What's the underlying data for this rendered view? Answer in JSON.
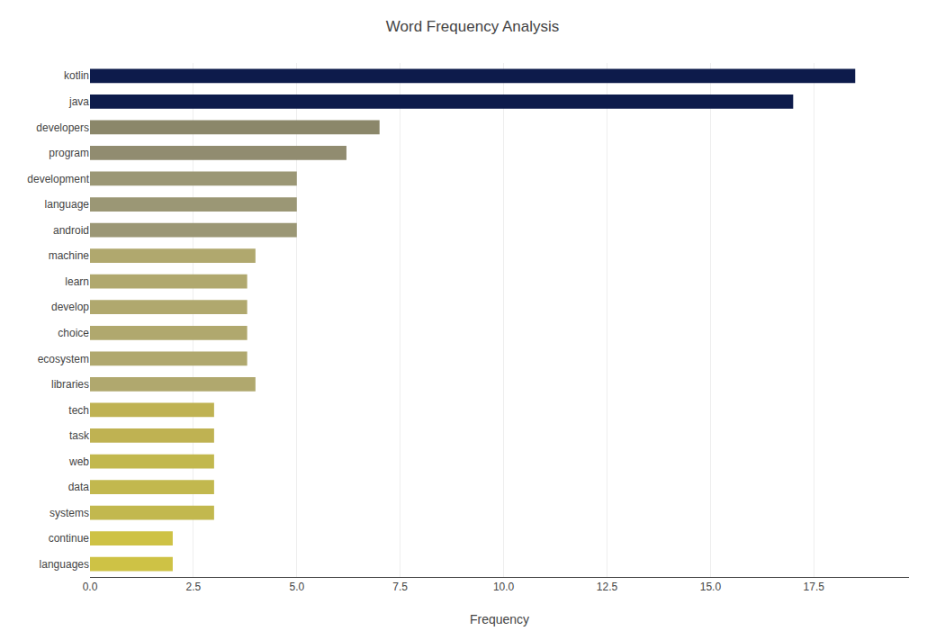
{
  "chart_data": {
    "type": "bar",
    "orientation": "horizontal",
    "title": "Word Frequency Analysis",
    "xlabel": "Frequency",
    "categories": [
      "kotlin",
      "java",
      "developers",
      "program",
      "development",
      "language",
      "android",
      "machine",
      "learn",
      "develop",
      "choice",
      "ecosystem",
      "libraries",
      "tech",
      "task",
      "web",
      "data",
      "systems",
      "continue",
      "languages"
    ],
    "values": [
      18.5,
      17.0,
      7.0,
      6.2,
      5.0,
      5.0,
      5.0,
      4.0,
      3.8,
      3.8,
      3.8,
      3.8,
      4.0,
      3.0,
      3.0,
      3.0,
      3.0,
      3.0,
      2.0,
      2.0
    ],
    "colors": [
      "#0d1b4b",
      "#0d1b4b",
      "#8b876a",
      "#918c70",
      "#9b9775",
      "#9b9775",
      "#9b9775",
      "#b0a86e",
      "#b0a86e",
      "#b0a86e",
      "#b0a86e",
      "#b0a86e",
      "#b0a86e",
      "#bfb252",
      "#bfb252",
      "#c2b84e",
      "#c2b84e",
      "#c2b84e",
      "#cec245",
      "#cec245"
    ],
    "xlim": [
      0,
      19.8
    ],
    "xticks": [
      {
        "value": 0,
        "label": "0.0"
      },
      2.5,
      {
        "value": 5,
        "label": "5.0"
      },
      7.5,
      {
        "value": 10,
        "label": "10.0"
      },
      12.5,
      {
        "value": 15,
        "label": "15.0"
      },
      17.5
    ],
    "grid": true
  }
}
